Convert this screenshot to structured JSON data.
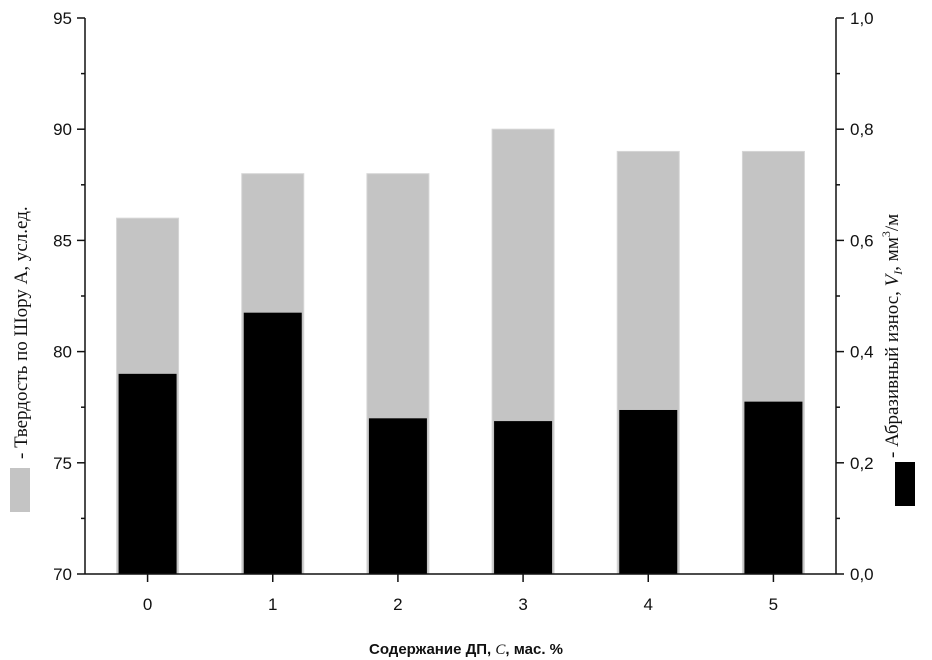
{
  "chart_data": {
    "type": "bar",
    "categories": [
      "0",
      "1",
      "2",
      "3",
      "4",
      "5"
    ],
    "series": [
      {
        "name": "Твердость по Шору А",
        "axis": "left",
        "color": "#c4c4c4",
        "values": [
          86,
          88,
          88,
          90,
          89,
          89
        ]
      },
      {
        "name": "Абразивный износ",
        "axis": "right",
        "color": "#000000",
        "values": [
          0.36,
          0.47,
          0.28,
          0.275,
          0.295,
          0.31
        ]
      }
    ],
    "xlabel": {
      "text": "Содержание ДП, ",
      "var": "C",
      "suffix": ", мас. %"
    },
    "ylabel_left": "- Твердость по Шору А, усл.ед.",
    "ylabel_right": {
      "text": "- Абразивный износ, ",
      "var": "V",
      "sub": "I",
      "unit": ", мм",
      "sup": "3",
      "tail": "/м"
    },
    "ylim_left": [
      70,
      95
    ],
    "ylim_right": [
      0,
      1.0
    ],
    "yticks_left": [
      "70",
      "75",
      "80",
      "85",
      "90",
      "95"
    ],
    "yticks_right": [
      "0,0",
      "0,2",
      "0,4",
      "0,6",
      "0,8",
      "1,0"
    ],
    "grid": false,
    "legend": "swatches-beside-axis-titles"
  }
}
